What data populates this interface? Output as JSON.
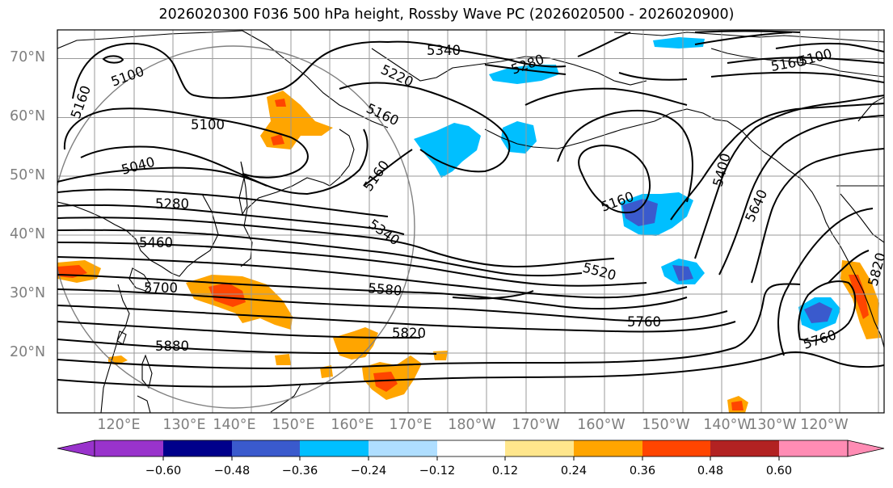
{
  "title": "2026020300 F036 500 hPa height, Rossby Wave PC (2026020500 - 2026020900)",
  "lat_labels": [
    "70°N",
    "60°N",
    "50°N",
    "40°N",
    "30°N",
    "20°N"
  ],
  "lon_labels": [
    "120°E",
    "130°E",
    "140°E",
    "150°E",
    "160°E",
    "170°E",
    "180°W",
    "170°W",
    "160°W",
    "150°W",
    "140°W",
    "130°W",
    "120°W"
  ],
  "contour_labels": [
    "5340",
    "5280",
    "5220",
    "5160",
    "5100",
    "5100",
    "5160",
    "5100",
    "5160",
    "5040",
    "5160",
    "5280",
    "5460",
    "5340",
    "5400",
    "5640",
    "5160",
    "5520",
    "5700",
    "5580",
    "5820",
    "5760",
    "5880",
    "5820",
    "5760"
  ],
  "colorbar": {
    "ticks": [
      "−0.60",
      "−0.48",
      "−0.36",
      "−0.24",
      "−0.12",
      "0.12",
      "0.24",
      "0.36",
      "0.48",
      "0.60"
    ],
    "colors": [
      "#9933cc",
      "#00008b",
      "#3a5acd",
      "#00bfff",
      "#afdeff",
      "#ffffff",
      "#ffe68c",
      "#ffa500",
      "#ff4500",
      "#b22222",
      "#ff8cb4"
    ]
  },
  "colors": {
    "grid": "#999999",
    "contour": "#000000",
    "circle": "#808080"
  }
}
